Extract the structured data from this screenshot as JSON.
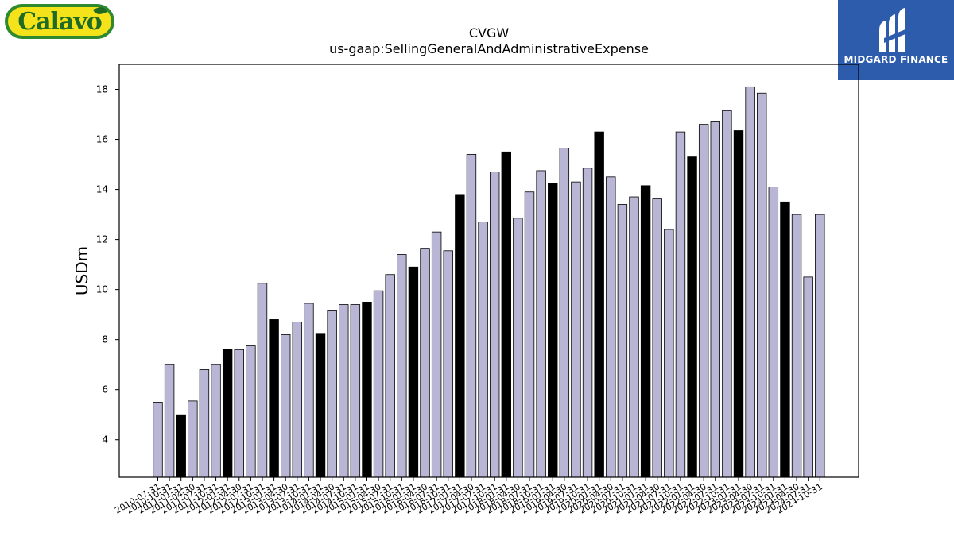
{
  "logos": {
    "left_text": "Calavo",
    "right_text": "MIDGARD FINANCE"
  },
  "chart_data": {
    "type": "bar",
    "title": "CVGW",
    "subtitle": "us-gaap:SellingGeneralAndAdministrativeExpense",
    "xlabel": "",
    "ylabel": "USDm",
    "ylim": [
      2.5,
      19.0
    ],
    "yticks": [
      4,
      6,
      8,
      10,
      12,
      14,
      16,
      18
    ],
    "grid": false,
    "colors": {
      "normal": "#b9b5d5",
      "highlight": "#000000",
      "edge": "#000000"
    },
    "categories": [
      "2010-07-31",
      "2010-10-31",
      "2011-01-31",
      "2011-04-30",
      "2011-07-31",
      "2011-10-31",
      "2012-01-31",
      "2012-04-30",
      "2012-07-31",
      "2012-10-31",
      "2013-01-31",
      "2013-04-30",
      "2013-07-31",
      "2013-10-31",
      "2014-01-31",
      "2014-04-30",
      "2014-07-31",
      "2014-10-31",
      "2015-01-31",
      "2015-04-30",
      "2015-07-31",
      "2015-10-31",
      "2016-01-31",
      "2016-04-30",
      "2016-07-31",
      "2016-10-31",
      "2017-01-31",
      "2017-04-30",
      "2017-07-31",
      "2017-10-31",
      "2018-01-31",
      "2018-04-30",
      "2018-07-31",
      "2018-10-31",
      "2019-01-31",
      "2019-04-30",
      "2019-07-31",
      "2019-10-31",
      "2020-01-31",
      "2020-04-30",
      "2020-07-31",
      "2020-10-31",
      "2021-01-31",
      "2021-04-30",
      "2021-07-31",
      "2021-10-31",
      "2022-01-31",
      "2022-04-30",
      "2022-07-31",
      "2022-10-31",
      "2023-01-31",
      "2023-04-30",
      "2023-07-31",
      "2023-10-31",
      "2024-01-31",
      "2024-04-30",
      "2024-07-31",
      "2024-10-31"
    ],
    "tick_labels": [
      "2010-07-31",
      "2010-10-31",
      "2011-01-31",
      "2011-04-30",
      "2011-07-31",
      "2011-10-31",
      "2012-01-31",
      "2012-04-30",
      "2012-07-31",
      "2012-10-31",
      "2013-01-31",
      "2013-04-30",
      "2013-07-31",
      "2013-10-31",
      "2014-01-31",
      "2014-04-30",
      "2014-07-31",
      "2014-10-31",
      "2015-01-31",
      "2015-04-30",
      "2015-07-31",
      "2015-10-31",
      "2016-01-31",
      "2016-04-30",
      "2016-07-31",
      "2016-10-31",
      "2017-01-31",
      "2017-04-30",
      "2017-07-31",
      "2017-10-31",
      "2018-01-31",
      "2018-04-30",
      "2018-07-31",
      "2018-10-31",
      "2019-01-31",
      "2019-04-30",
      "2019-07-31",
      "2019-10-31",
      "2020-01-31",
      "2020-04-30",
      "2020-07-31",
      "2020-10-31",
      "2021-01-31",
      "2021-04-30",
      "2021-07-31",
      "2021-10-31",
      "2022-01-31",
      "2022-04-30",
      "2022-07-31",
      "2022-10-31",
      "2023-01-31",
      "2023-04-30",
      "2023-07-31",
      "2023-10-31",
      "2024-01-31",
      "2024-04-30",
      "2024-07-31",
      "2024-10-31"
    ],
    "values": [
      5.5,
      7.0,
      5.0,
      5.55,
      6.8,
      7.0,
      7.6,
      7.6,
      7.75,
      10.25,
      8.8,
      8.2,
      8.7,
      9.45,
      8.25,
      9.15,
      9.4,
      9.4,
      9.5,
      9.95,
      10.6,
      11.4,
      10.9,
      11.65,
      12.3,
      11.55,
      13.8,
      15.4,
      12.7,
      14.7,
      15.5,
      12.85,
      13.9,
      14.75,
      14.25,
      15.65,
      14.3,
      14.85,
      16.3,
      14.5,
      13.4,
      13.7,
      14.15,
      13.65,
      12.4,
      16.3,
      15.3,
      16.6,
      16.7,
      17.15,
      16.35,
      18.1,
      17.85,
      14.1,
      13.5,
      13.0,
      10.5,
      13.0
    ],
    "highlight": [
      false,
      false,
      true,
      false,
      false,
      false,
      true,
      false,
      false,
      false,
      true,
      false,
      false,
      false,
      true,
      false,
      false,
      false,
      true,
      false,
      false,
      false,
      true,
      false,
      false,
      false,
      true,
      false,
      false,
      false,
      true,
      false,
      false,
      false,
      true,
      false,
      false,
      false,
      true,
      false,
      false,
      false,
      true,
      false,
      false,
      false,
      true,
      false,
      false,
      false,
      true,
      false,
      false,
      false,
      true,
      false,
      false,
      false
    ]
  }
}
